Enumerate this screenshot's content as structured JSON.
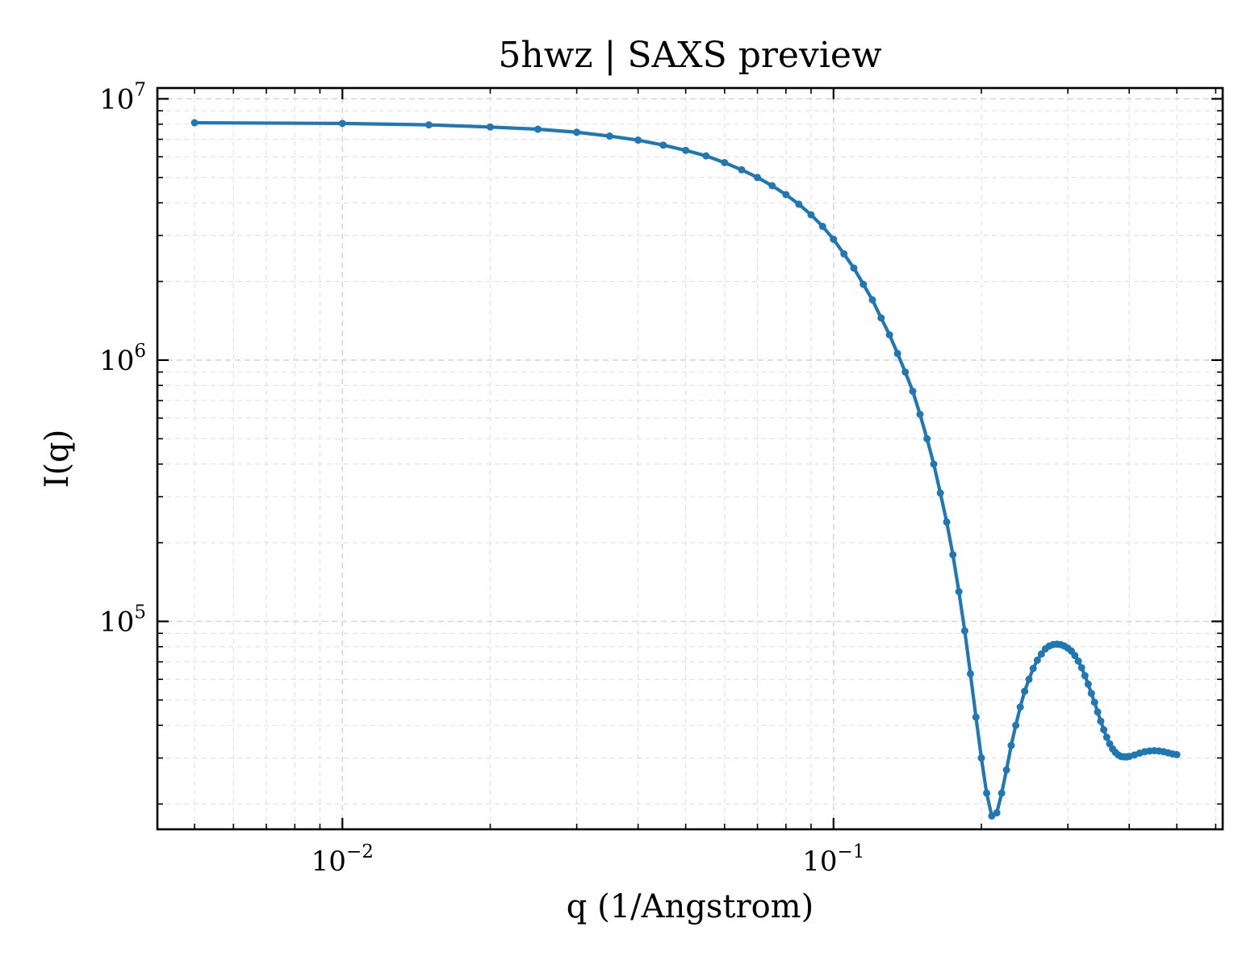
{
  "chart_data": {
    "type": "line",
    "title": "5hwz | SAXS preview",
    "xlabel": "q (1/Angstrom)",
    "ylabel": "I(q)",
    "xscale": "log",
    "yscale": "log",
    "xlim": [
      0.0042,
      0.62
    ],
    "ylim": [
      16000,
      11000000
    ],
    "xticks": [
      {
        "value": 0.01,
        "base": "10",
        "exp": "−2"
      },
      {
        "value": 0.1,
        "base": "10",
        "exp": "−1"
      }
    ],
    "yticks": [
      {
        "value": 100000,
        "base": "10",
        "exp": "5"
      },
      {
        "value": 1000000,
        "base": "10",
        "exp": "6"
      },
      {
        "value": 10000000,
        "base": "10",
        "exp": "7"
      }
    ],
    "grid": true,
    "color": "#1f77b4",
    "series": [
      {
        "x": [
          0.005,
          0.01,
          0.015,
          0.02,
          0.025,
          0.03,
          0.035,
          0.04,
          0.045,
          0.05,
          0.055,
          0.06,
          0.065,
          0.07,
          0.075,
          0.08,
          0.085,
          0.09,
          0.095,
          0.1,
          0.105,
          0.11,
          0.115,
          0.12,
          0.125,
          0.13,
          0.135,
          0.14,
          0.145,
          0.15,
          0.155,
          0.16,
          0.165,
          0.17,
          0.175,
          0.18,
          0.185,
          0.19,
          0.195,
          0.2,
          0.205,
          0.21,
          0.215,
          0.22,
          0.225,
          0.23,
          0.235,
          0.24,
          0.245,
          0.25,
          0.255,
          0.26,
          0.265,
          0.27,
          0.275,
          0.28,
          0.285,
          0.29,
          0.295,
          0.3,
          0.305,
          0.31,
          0.315,
          0.32,
          0.325,
          0.33,
          0.335,
          0.34,
          0.345,
          0.35,
          0.355,
          0.36,
          0.365,
          0.37,
          0.375,
          0.38,
          0.385,
          0.39,
          0.395,
          0.4,
          0.41,
          0.42,
          0.43,
          0.44,
          0.45,
          0.46,
          0.47,
          0.48,
          0.49,
          0.5
        ],
        "y": [
          8100000,
          8050000,
          7950000,
          7800000,
          7650000,
          7450000,
          7200000,
          6950000,
          6650000,
          6350000,
          6050000,
          5700000,
          5350000,
          5000000,
          4650000,
          4300000,
          3950000,
          3600000,
          3250000,
          2900000,
          2550000,
          2250000,
          1950000,
          1700000,
          1450000,
          1250000,
          1060000,
          900000,
          760000,
          620000,
          500000,
          400000,
          310000,
          240000,
          180000,
          130000,
          92000,
          63000,
          43000,
          30000,
          22000,
          18000,
          18500,
          22000,
          27000,
          33500,
          40000,
          47000,
          54000,
          60000,
          66000,
          71000,
          75000,
          78500,
          80500,
          81500,
          81800,
          81500,
          80500,
          79000,
          77000,
          74000,
          70500,
          66500,
          62000,
          57500,
          53000,
          49000,
          45000,
          41500,
          38500,
          36000,
          34000,
          32500,
          31500,
          30800,
          30400,
          30300,
          30300,
          30400,
          30800,
          31300,
          31700,
          31900,
          32000,
          31900,
          31700,
          31400,
          31100,
          30900
        ]
      }
    ]
  }
}
